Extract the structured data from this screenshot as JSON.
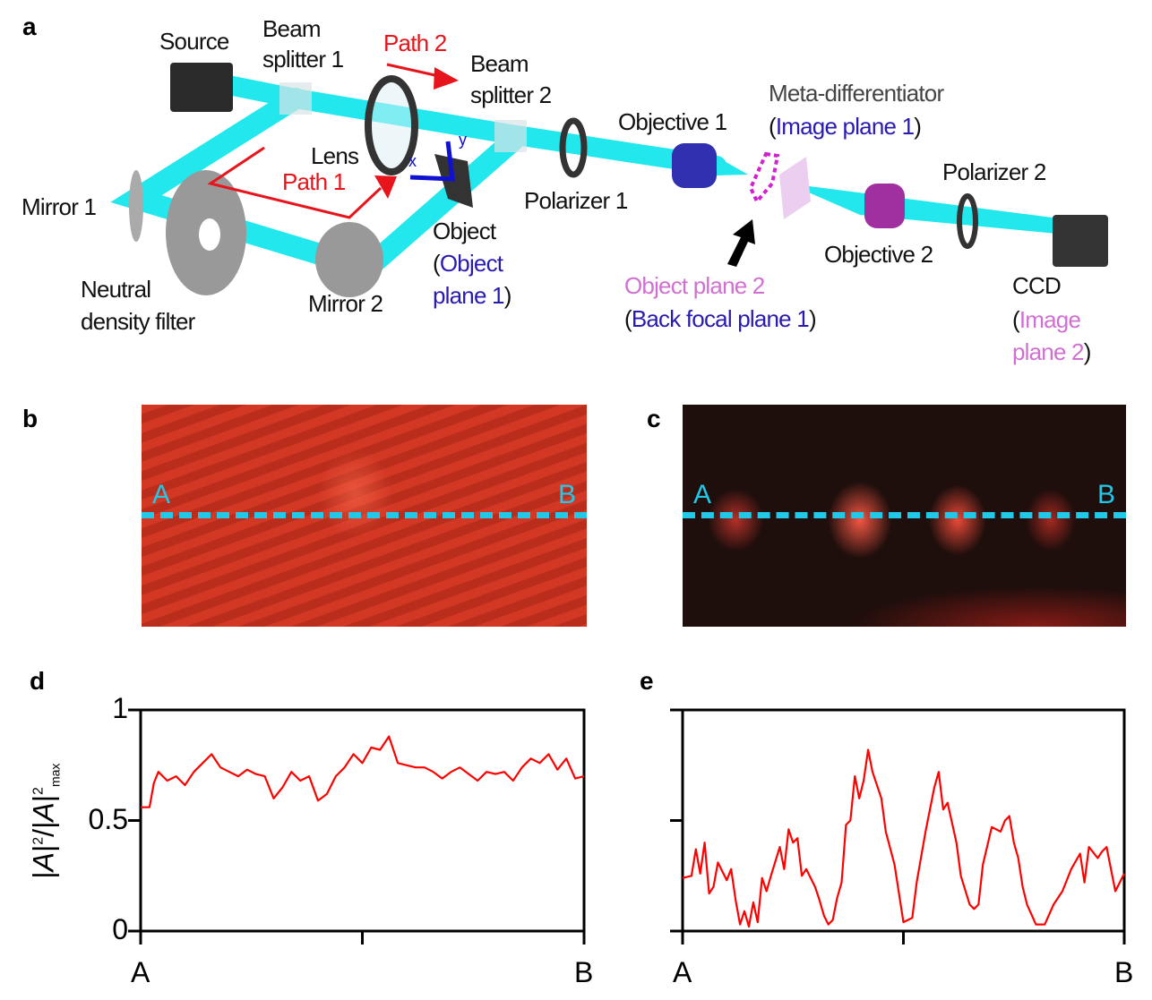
{
  "panels": {
    "a": "a",
    "b": "b",
    "c": "c",
    "d": "d",
    "e": "e"
  },
  "diagram": {
    "source": "Source",
    "beam_splitter_1": [
      "Beam",
      "splitter 1"
    ],
    "beam_splitter_2": [
      "Beam",
      "splitter 2"
    ],
    "path_2": "Path 2",
    "path_1": "Path 1",
    "lens": "Lens",
    "axis_x": "x",
    "axis_y": "y",
    "mirror_1": "Mirror 1",
    "mirror_2": "Mirror 2",
    "nd_filter": [
      "Neutral",
      "density filter"
    ],
    "object": "Object",
    "object_plane_1": [
      "(",
      "Object",
      "plane 1",
      ")"
    ],
    "polarizer_1": "Polarizer 1",
    "objective_1": "Objective 1",
    "meta_differentiator": "Meta-differentiator",
    "image_plane_1": [
      "(",
      "Image plane 1",
      ")"
    ],
    "polarizer_2": "Polarizer 2",
    "objective_2": "Objective 2",
    "object_plane_2": "Object plane 2",
    "back_focal_plane_1": [
      "(",
      "Back focal plane 1",
      ")"
    ],
    "ccd": "CCD",
    "image_plane_2": [
      "(",
      "Image",
      "plane 2",
      ")"
    ],
    "colors": {
      "beam": "#22e8ee",
      "path_arrow": "#e8141b",
      "axes": "#1010d0",
      "label_blue": "#2a1bb0",
      "label_pink": "#d070d0"
    }
  },
  "images": {
    "b": {
      "start": "A",
      "end": "B"
    },
    "c": {
      "start": "A",
      "end": "B"
    },
    "line_color": "#22c8e8"
  },
  "chart_data": [
    {
      "type": "line",
      "panel": "d",
      "ylabel": "|A|²/|A|²max",
      "ylim": [
        0,
        1
      ],
      "yticks": [
        "0",
        "0.5",
        "1"
      ],
      "xticks": [
        "A",
        "",
        "B"
      ],
      "xlim": [
        0,
        1
      ],
      "color": "#ff0000",
      "x": [
        0,
        0.02,
        0.03,
        0.04,
        0.06,
        0.08,
        0.1,
        0.12,
        0.14,
        0.16,
        0.18,
        0.2,
        0.22,
        0.24,
        0.26,
        0.28,
        0.3,
        0.32,
        0.34,
        0.36,
        0.38,
        0.4,
        0.42,
        0.44,
        0.46,
        0.48,
        0.5,
        0.52,
        0.54,
        0.56,
        0.58,
        0.6,
        0.62,
        0.64,
        0.66,
        0.68,
        0.7,
        0.72,
        0.74,
        0.76,
        0.78,
        0.8,
        0.82,
        0.84,
        0.86,
        0.88,
        0.9,
        0.92,
        0.94,
        0.96,
        0.98,
        1
      ],
      "y": [
        0.56,
        0.56,
        0.67,
        0.72,
        0.68,
        0.7,
        0.66,
        0.72,
        0.76,
        0.8,
        0.74,
        0.72,
        0.7,
        0.73,
        0.71,
        0.7,
        0.6,
        0.65,
        0.72,
        0.68,
        0.7,
        0.59,
        0.62,
        0.7,
        0.74,
        0.8,
        0.76,
        0.83,
        0.82,
        0.88,
        0.76,
        0.75,
        0.74,
        0.74,
        0.72,
        0.69,
        0.72,
        0.74,
        0.71,
        0.68,
        0.72,
        0.71,
        0.72,
        0.68,
        0.74,
        0.78,
        0.76,
        0.8,
        0.73,
        0.78,
        0.69,
        0.7
      ]
    },
    {
      "type": "line",
      "panel": "e",
      "ylim": [
        0,
        1
      ],
      "yticks": [
        "",
        "",
        ""
      ],
      "xticks": [
        "A",
        "",
        "B"
      ],
      "xlim": [
        0,
        1
      ],
      "color": "#ff0000",
      "x": [
        0,
        0.02,
        0.03,
        0.04,
        0.05,
        0.06,
        0.07,
        0.08,
        0.1,
        0.11,
        0.12,
        0.13,
        0.14,
        0.15,
        0.16,
        0.17,
        0.18,
        0.19,
        0.2,
        0.22,
        0.23,
        0.24,
        0.25,
        0.26,
        0.27,
        0.28,
        0.3,
        0.31,
        0.32,
        0.33,
        0.34,
        0.35,
        0.36,
        0.37,
        0.38,
        0.39,
        0.4,
        0.41,
        0.42,
        0.43,
        0.45,
        0.46,
        0.48,
        0.5,
        0.52,
        0.53,
        0.55,
        0.57,
        0.58,
        0.59,
        0.6,
        0.62,
        0.63,
        0.65,
        0.66,
        0.67,
        0.68,
        0.7,
        0.72,
        0.73,
        0.74,
        0.75,
        0.76,
        0.77,
        0.78,
        0.8,
        0.82,
        0.84,
        0.86,
        0.88,
        0.9,
        0.91,
        0.92,
        0.94,
        0.95,
        0.96,
        0.98,
        1
      ],
      "y": [
        0.24,
        0.25,
        0.37,
        0.26,
        0.4,
        0.17,
        0.2,
        0.31,
        0.23,
        0.28,
        0.14,
        0.03,
        0.09,
        0.02,
        0.13,
        0.04,
        0.24,
        0.18,
        0.25,
        0.38,
        0.28,
        0.46,
        0.4,
        0.42,
        0.25,
        0.28,
        0.2,
        0.14,
        0.07,
        0.03,
        0.05,
        0.15,
        0.22,
        0.48,
        0.5,
        0.7,
        0.6,
        0.68,
        0.82,
        0.72,
        0.6,
        0.45,
        0.3,
        0.04,
        0.06,
        0.22,
        0.45,
        0.65,
        0.72,
        0.55,
        0.58,
        0.4,
        0.25,
        0.12,
        0.1,
        0.12,
        0.3,
        0.47,
        0.45,
        0.5,
        0.52,
        0.4,
        0.33,
        0.2,
        0.12,
        0.03,
        0.03,
        0.12,
        0.18,
        0.28,
        0.35,
        0.22,
        0.38,
        0.33,
        0.36,
        0.38,
        0.18,
        0.26
      ]
    }
  ]
}
